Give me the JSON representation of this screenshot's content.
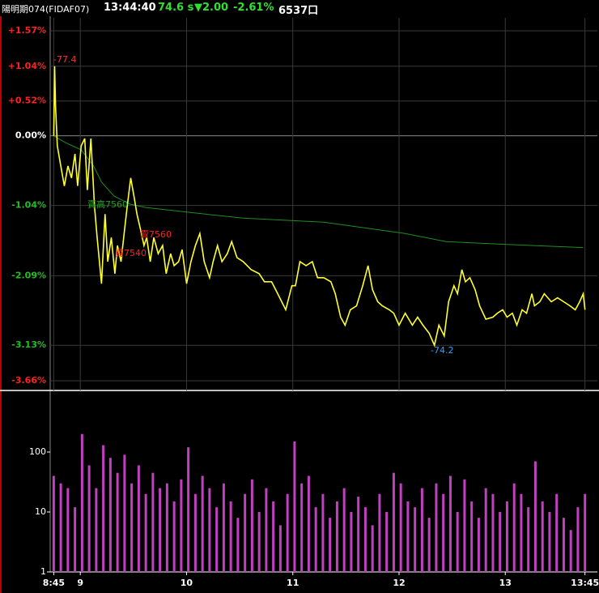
{
  "header": {
    "name": "陽明期074(FIDAF07)",
    "time": "13:44:40",
    "price": "74.6 s",
    "change": "▼2.00",
    "change_pct": "-2.61%",
    "volume": "6537口"
  },
  "chart_data": [
    {
      "type": "line",
      "xlim": [
        523,
        832
      ],
      "ylim": [
        -3.66,
        1.57
      ],
      "yticks": [
        {
          "value": 1.57,
          "label": "+1.57%"
        },
        {
          "value": 1.04,
          "label": "+1.04%"
        },
        {
          "value": 0.52,
          "label": "+0.52%"
        },
        {
          "value": 0,
          "label": "0.00%"
        },
        {
          "value": -1.04,
          "label": "-1.04%"
        },
        {
          "value": -2.09,
          "label": "-2.09%"
        },
        {
          "value": -3.13,
          "label": "-3.13%"
        },
        {
          "value": -3.66,
          "label": "-3.66%"
        }
      ],
      "ytick_colors": [
        "#ff2020",
        "#ff2020",
        "#ff2020",
        "#ffffff",
        "#20c020",
        "#20c020",
        "#20c020",
        "#ff2020"
      ],
      "grid": true,
      "annotations": [
        "-77.4",
        "-74.2",
        "賣高7560",
        "買7540",
        "賣7560"
      ],
      "annotation_colors": [
        "#ff3030",
        "#30a0ff",
        "#20a020",
        "#ff2020",
        "#ff2020"
      ],
      "series": [
        {
          "name": "price",
          "color": "#ffff30",
          "x": [
            525,
            525.5,
            526,
            527,
            529,
            531,
            533,
            535,
            537,
            538.5,
            540.5,
            542.5,
            544,
            546,
            548,
            549.5,
            552,
            554,
            555.5,
            557.5,
            559.5,
            561,
            563,
            565,
            566.5,
            568.5,
            570.5,
            572,
            574,
            576,
            577.5,
            579.5,
            581.5,
            584,
            586.5,
            588.5,
            591,
            593,
            595.5,
            597.5,
            600,
            602.5,
            605,
            607.5,
            610,
            613,
            615,
            617.5,
            620,
            623,
            625.5,
            628.5,
            632,
            636.5,
            641,
            644,
            648,
            651.5,
            656,
            659.5,
            661.5,
            664,
            667.5,
            671,
            674,
            677.5,
            681.5,
            684,
            687,
            689.5,
            692.5,
            696,
            699.5,
            702.5,
            705,
            708,
            710.5,
            714.5,
            717,
            720,
            723.5,
            727.5,
            730.5,
            733.5,
            737,
            740,
            742.5,
            745.5,
            748,
            751,
            753,
            755.5,
            757.5,
            760,
            763,
            765.5,
            769,
            773,
            775.5,
            778.5,
            781,
            784,
            786.5,
            789.5,
            792,
            795,
            796.5,
            799.5,
            802,
            806,
            809.5,
            813,
            816.5,
            819.5,
            822,
            824,
            825
          ],
          "values": [
            0,
            1.04,
            0.45,
            -0.15,
            -0.45,
            -0.75,
            -0.45,
            -0.63,
            -0.27,
            -0.75,
            -0.15,
            -0.04,
            -0.81,
            -0.04,
            -1.05,
            -1.52,
            -2.21,
            -1.17,
            -1.88,
            -1.52,
            -2.06,
            -1.64,
            -1.88,
            -1.4,
            -1.05,
            -0.63,
            -0.93,
            -1.17,
            -1.4,
            -1.64,
            -1.52,
            -1.88,
            -1.52,
            -1.76,
            -1.64,
            -2.06,
            -1.76,
            -1.94,
            -1.88,
            -1.7,
            -2.21,
            -1.88,
            -1.64,
            -1.46,
            -1.88,
            -2.12,
            -1.88,
            -1.64,
            -1.88,
            -1.76,
            -1.58,
            -1.82,
            -1.88,
            -2.0,
            -2.06,
            -2.18,
            -2.18,
            -2.36,
            -2.6,
            -2.24,
            -2.24,
            -1.88,
            -1.94,
            -1.88,
            -2.12,
            -2.12,
            -2.18,
            -2.36,
            -2.71,
            -2.83,
            -2.6,
            -2.54,
            -2.24,
            -1.94,
            -2.3,
            -2.48,
            -2.54,
            -2.6,
            -2.65,
            -2.83,
            -2.65,
            -2.83,
            -2.71,
            -2.83,
            -2.95,
            -3.13,
            -2.83,
            -2.99,
            -2.48,
            -2.24,
            -2.36,
            -2.0,
            -2.18,
            -2.12,
            -2.3,
            -2.54,
            -2.74,
            -2.71,
            -2.65,
            -2.6,
            -2.71,
            -2.65,
            -2.83,
            -2.6,
            -2.65,
            -2.36,
            -2.54,
            -2.48,
            -2.36,
            -2.48,
            -2.42,
            -2.48,
            -2.54,
            -2.6,
            -2.48,
            -2.36,
            -2.6
          ]
        },
        {
          "name": "average",
          "color": "#1f8f1f",
          "x": [
            525,
            531.5,
            540.5,
            547.5,
            552,
            559,
            568,
            577,
            600,
            632,
            677.5,
            723.5,
            746.5,
            778.5,
            824
          ],
          "values": [
            0,
            -0.1,
            -0.21,
            -0.45,
            -0.69,
            -0.9,
            -1.02,
            -1.07,
            -1.14,
            -1.23,
            -1.29,
            -1.46,
            -1.58,
            -1.62,
            -1.67
          ]
        }
      ]
    },
    {
      "type": "bar",
      "log_y": true,
      "color": "#c040c0",
      "xlim": [
        523,
        832
      ],
      "ylim": [
        1,
        1000
      ],
      "yticks": [
        1,
        10,
        100
      ],
      "xticks": [
        {
          "value": 525,
          "label": "8:45"
        },
        {
          "value": 540,
          "label": "9"
        },
        {
          "value": 600,
          "label": "10"
        },
        {
          "value": 660,
          "label": "11"
        },
        {
          "value": 720,
          "label": "12"
        },
        {
          "value": 780,
          "label": "13"
        },
        {
          "value": 825,
          "label": "13:45"
        }
      ],
      "x": [
        525,
        529,
        533,
        537,
        541,
        545,
        549,
        553,
        557,
        561,
        565,
        569,
        573,
        577,
        581,
        585,
        589,
        593,
        597,
        601,
        605,
        609,
        613,
        617,
        621,
        625,
        629,
        633,
        637,
        641,
        645,
        649,
        653,
        657,
        661,
        665,
        669,
        673,
        677,
        681,
        685,
        689,
        693,
        697,
        701,
        705,
        709,
        713,
        717,
        721,
        725,
        729,
        733,
        737,
        741,
        745,
        749,
        753,
        757,
        761,
        765,
        769,
        773,
        777,
        781,
        785,
        789,
        793,
        797,
        801,
        805,
        809,
        813,
        817,
        821,
        825
      ],
      "values": [
        40,
        30,
        25,
        12,
        200,
        60,
        25,
        130,
        80,
        45,
        90,
        30,
        60,
        20,
        45,
        25,
        30,
        15,
        35,
        120,
        20,
        40,
        25,
        12,
        30,
        15,
        8,
        20,
        35,
        10,
        25,
        15,
        6,
        20,
        150,
        30,
        40,
        12,
        20,
        8,
        15,
        25,
        10,
        18,
        12,
        6,
        20,
        10,
        45,
        30,
        15,
        12,
        25,
        8,
        30,
        20,
        40,
        10,
        35,
        15,
        8,
        25,
        20,
        10,
        15,
        30,
        20,
        12,
        70,
        15,
        10,
        20,
        8,
        5,
        12,
        20
      ]
    }
  ]
}
